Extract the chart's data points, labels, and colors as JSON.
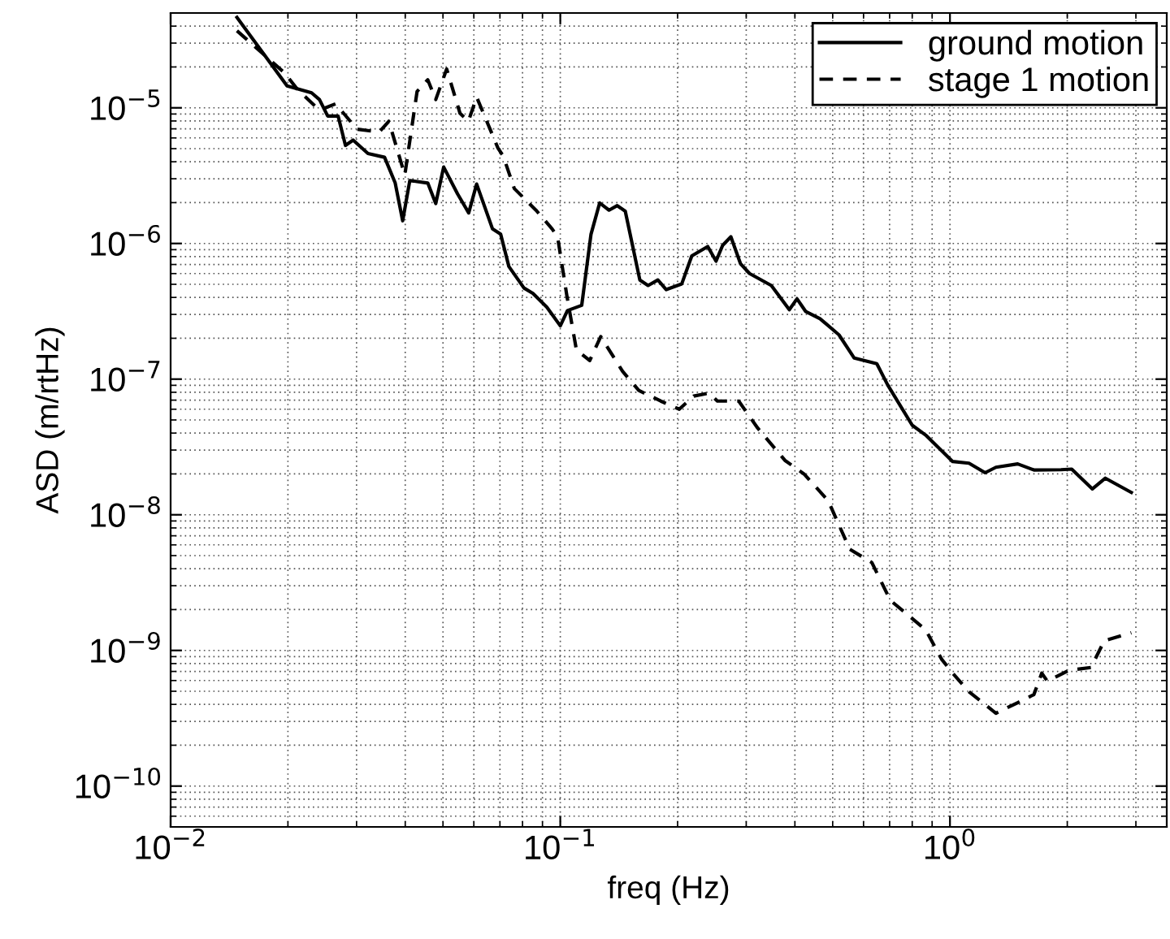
{
  "chart_data": {
    "type": "line",
    "xlabel": "freq (Hz)",
    "ylabel": "ASD (m/rtHz)",
    "log": "xy",
    "grid": true,
    "legend": "top right",
    "xlim": [
      0.01,
      3.6
    ],
    "ylim": [
      5e-11,
      5e-05
    ],
    "xticks": [
      {
        "value": 0.01,
        "label": "10$^{−2}$"
      },
      {
        "value": 0.1,
        "label": "10$^{−1}$"
      },
      {
        "value": 1,
        "label": "10$^{0}$"
      }
    ],
    "yticks": [
      {
        "value": 1e-10,
        "label": "10$^{−10}$"
      },
      {
        "value": 1e-09,
        "label": "10$^{−9}$"
      },
      {
        "value": 1e-08,
        "label": "10$^{−8}$"
      },
      {
        "value": 1e-07,
        "label": "10$^{−7}$"
      },
      {
        "value": 1e-06,
        "label": "10$^{−6}$"
      },
      {
        "value": 1e-05,
        "label": "10$^{−5}$"
      }
    ],
    "series": [
      {
        "name": "ground motion",
        "color": "#000000",
        "line_style": "solid",
        "x": [
          0.0148,
          0.0199,
          0.023,
          0.0241,
          0.0253,
          0.0269,
          0.0281,
          0.0294,
          0.0321,
          0.0354,
          0.0377,
          0.0394,
          0.0411,
          0.0457,
          0.0479,
          0.0502,
          0.0545,
          0.0582,
          0.061,
          0.067,
          0.0703,
          0.0738,
          0.0807,
          0.0851,
          0.0923,
          0.1,
          0.1043,
          0.1135,
          0.1199,
          0.1262,
          0.1334,
          0.14,
          0.1468,
          0.16,
          0.168,
          0.178,
          0.187,
          0.205,
          0.2175,
          0.239,
          0.251,
          0.261,
          0.274,
          0.29,
          0.306,
          0.348,
          0.387,
          0.405,
          0.426,
          0.464,
          0.519,
          0.568,
          0.649,
          0.692,
          0.8,
          0.866,
          1.016,
          1.119,
          1.231,
          1.312,
          1.492,
          1.642,
          1.927,
          2.053,
          2.32,
          2.505,
          2.92
        ],
        "values": [
          4.64e-05,
          1.45e-05,
          1.29e-05,
          1.15e-05,
          8.7e-06,
          8.7e-06,
          5.28e-06,
          5.78e-06,
          4.6e-06,
          4.32e-06,
          2.79e-06,
          1.47e-06,
          2.91e-06,
          2.79e-06,
          1.97e-06,
          3.66e-06,
          2.32e-06,
          1.68e-06,
          2.74e-06,
          1.28e-06,
          1.17e-06,
          6.76e-07,
          4.69e-07,
          4.28e-07,
          3.4e-07,
          2.47e-07,
          3.2e-07,
          3.5e-07,
          1.17e-06,
          1.99e-06,
          1.76e-06,
          1.9e-06,
          1.73e-06,
          5.38e-07,
          4.9e-07,
          5.38e-07,
          4.57e-07,
          5.04e-07,
          8.1e-07,
          9.5e-07,
          7.4e-07,
          9.7e-07,
          1.12e-06,
          7.1e-07,
          6e-07,
          4.9e-07,
          3.25e-07,
          3.91e-07,
          3.16e-07,
          2.79e-07,
          2.12e-07,
          1.43e-07,
          1.3e-07,
          9.06e-08,
          4.57e-08,
          3.87e-08,
          2.47e-08,
          2.4e-08,
          2.04e-08,
          2.24e-08,
          2.37e-08,
          2.14e-08,
          2.15e-08,
          2.17e-08,
          1.55e-08,
          1.86e-08,
          1.46e-08
        ]
      },
      {
        "name": "stage 1 motion",
        "color": "#000000",
        "line_style": "dashed",
        "x": [
          0.0148,
          0.0196,
          0.0211,
          0.0241,
          0.0265,
          0.0301,
          0.0343,
          0.0363,
          0.0399,
          0.0429,
          0.0457,
          0.0479,
          0.0511,
          0.0553,
          0.0581,
          0.061,
          0.0692,
          0.0714,
          0.0762,
          0.0866,
          0.0953,
          0.0984,
          0.104,
          0.11,
          0.119,
          0.127,
          0.1445,
          0.159,
          0.181,
          0.202,
          0.22,
          0.241,
          0.253,
          0.287,
          0.321,
          0.377,
          0.422,
          0.487,
          0.553,
          0.63,
          0.703,
          0.866,
          0.953,
          1.016,
          1.119,
          1.312,
          1.492,
          1.642,
          1.72,
          1.778,
          2.02,
          2.3,
          2.49,
          2.92
        ],
        "values": [
          3.7e-05,
          1.81e-05,
          1.38e-05,
          9.6e-06,
          1.07e-05,
          6.95e-06,
          6.63e-06,
          7.96e-06,
          3.2e-06,
          1.32e-05,
          1.61e-05,
          1.15e-05,
          1.93e-05,
          9.1e-06,
          7.96e-06,
          1.2e-05,
          5.04e-06,
          4.4e-06,
          2.54e-06,
          1.76e-06,
          1.28e-06,
          1.12e-06,
          4.09e-07,
          1.64e-07,
          1.37e-07,
          2.06e-07,
          1.14e-07,
          8.26e-08,
          6.89e-08,
          6e-08,
          7.5e-08,
          7.9e-08,
          6.89e-08,
          6.89e-08,
          4.36e-08,
          2.52e-08,
          2e-08,
          1.27e-08,
          5.57e-09,
          4.45e-09,
          2.34e-09,
          1.42e-09,
          8.57e-10,
          6.8e-10,
          4.96e-10,
          3.44e-10,
          4.12e-10,
          4.73e-10,
          6.8e-10,
          5.94e-10,
          7.14e-10,
          7.48e-10,
          1.18e-09,
          1.35e-09
        ]
      }
    ]
  }
}
